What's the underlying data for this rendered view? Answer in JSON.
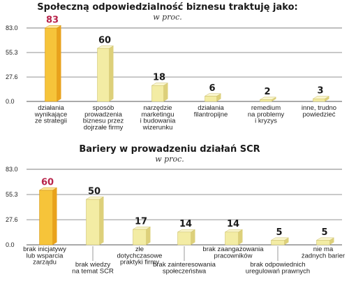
{
  "colors": {
    "highlight_front": "#f6c43a",
    "highlight_side": "#e9a21c",
    "highlight_top": "#fde79a",
    "bar_front": "#f3eca4",
    "bar_side": "#ddd07a",
    "bar_top": "#faf6cf",
    "highlight_label": "#b8234a",
    "grid": "#555555"
  },
  "chart_data": [
    {
      "type": "bar",
      "title": "Społeczną odpowiedzialność biznesu traktuję jako:",
      "subtitle": "w proc.",
      "yticks": [
        "83.0",
        "55.3",
        "27.6",
        "0.0"
      ],
      "ylim": [
        0,
        83
      ],
      "grid": true,
      "categories": [
        [
          "działania",
          "wynikające",
          "ze strategii"
        ],
        [
          "sposób",
          "prowadzenia",
          "biznesu przez",
          "dojrzałe firmy"
        ],
        [
          "narzędzie",
          "marketingu",
          "i budowania",
          "wizerunku"
        ],
        [
          "działania",
          "filantropijne"
        ],
        [
          "remedium",
          "na problemy",
          "i kryzys"
        ],
        [
          "inne, trudno",
          "powiedzieć"
        ]
      ],
      "values": [
        83,
        60,
        18,
        6,
        2,
        3
      ],
      "highlight": [
        0
      ]
    },
    {
      "type": "bar",
      "title": "Bariery w prowadzeniu działań SCR",
      "subtitle": "w proc.",
      "yticks": [
        "83.0",
        "55.3",
        "27.6",
        "0.0"
      ],
      "ylim": [
        0,
        83
      ],
      "grid": true,
      "categories": [
        [
          "brak inicjatywy",
          "lub wsparcia",
          "zarządu"
        ],
        [
          "brak wiedzy",
          "na temat SCR"
        ],
        [
          "złe",
          "dotychczasowe",
          "praktyki firmy"
        ],
        [
          "brak zainteresowania",
          "społeczeństwa"
        ],
        [
          "brak zaangażowania",
          "pracowników"
        ],
        [
          "brak odpowiednich",
          "uregulowań prawnych"
        ],
        [
          "nie ma",
          "żadnych barier"
        ]
      ],
      "values": [
        60,
        50,
        17,
        14,
        14,
        5,
        5
      ],
      "highlight": [
        0
      ]
    }
  ]
}
